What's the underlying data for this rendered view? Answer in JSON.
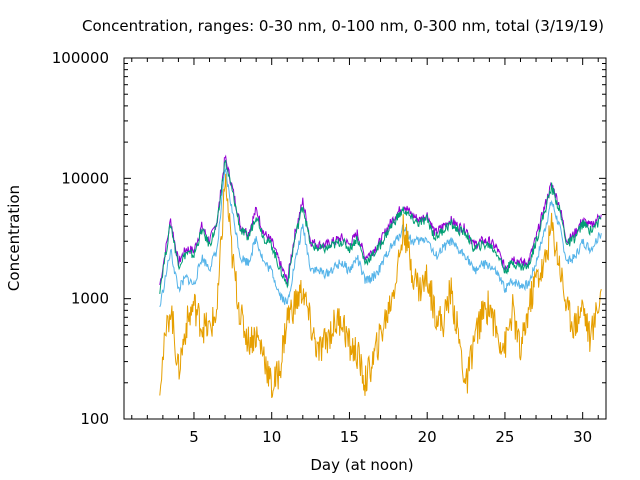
{
  "chart_data": {
    "type": "line",
    "title": "Concentration, ranges: 0-30 nm, 0-100 nm, 0-300 nm, total (3/19/19)",
    "xlabel": "Day (at noon)",
    "ylabel": "Concentration",
    "xlim": [
      0.5,
      31.5
    ],
    "ylim": [
      100,
      100000
    ],
    "yscale": "log",
    "xticks": [
      5,
      10,
      15,
      20,
      25,
      30
    ],
    "yticks": [
      100,
      1000,
      10000,
      100000
    ],
    "ytick_labels": [
      "100",
      "1000",
      "10000",
      "100000"
    ],
    "grid": false,
    "legend": "none",
    "series": [
      {
        "color": "#9400d3",
        "x": [
          2.8,
          3.5,
          4.0,
          4.5,
          5.0,
          5.5,
          6.0,
          6.5,
          7.0,
          7.5,
          8.0,
          8.5,
          9.0,
          9.5,
          10.0,
          10.5,
          11.0,
          11.5,
          12.0,
          12.5,
          13.0,
          13.5,
          14.0,
          14.5,
          15.0,
          15.5,
          16.0,
          16.5,
          17.0,
          17.5,
          18.0,
          18.5,
          19.0,
          19.5,
          20.0,
          20.5,
          21.0,
          21.5,
          22.0,
          22.5,
          23.0,
          23.5,
          24.0,
          24.5,
          25.0,
          25.5,
          26.0,
          26.5,
          27.0,
          27.5,
          28.0,
          28.5,
          29.0,
          29.5,
          30.0,
          30.5,
          31.2
        ],
        "y": [
          1300,
          4500,
          2000,
          2600,
          2500,
          4000,
          3000,
          4500,
          15000,
          8000,
          4000,
          3500,
          5500,
          3500,
          3000,
          2000,
          1400,
          3500,
          6500,
          3000,
          2800,
          2800,
          3000,
          3200,
          2800,
          3500,
          2200,
          2500,
          3000,
          4000,
          5000,
          6000,
          5000,
          4500,
          5000,
          3500,
          4000,
          4500,
          4000,
          3800,
          2800,
          3000,
          3000,
          2600,
          1800,
          2200,
          2000,
          2000,
          3200,
          5500,
          9000,
          6000,
          3000,
          3500,
          4500,
          4000,
          5000
        ]
      },
      {
        "color": "#009e73",
        "x": [
          2.8,
          3.5,
          4.0,
          4.5,
          5.0,
          5.5,
          6.0,
          6.5,
          7.0,
          7.5,
          8.0,
          8.5,
          9.0,
          9.5,
          10.0,
          10.5,
          11.0,
          11.5,
          12.0,
          12.5,
          13.0,
          13.5,
          14.0,
          14.5,
          15.0,
          15.5,
          16.0,
          16.5,
          17.0,
          17.5,
          18.0,
          18.5,
          19.0,
          19.5,
          20.0,
          20.5,
          21.0,
          21.5,
          22.0,
          22.5,
          23.0,
          23.5,
          24.0,
          24.5,
          25.0,
          25.5,
          26.0,
          26.5,
          27.0,
          27.5,
          28.0,
          28.5,
          29.0,
          29.5,
          30.0,
          30.5,
          31.2
        ],
        "y": [
          1200,
          4200,
          1900,
          2400,
          2300,
          3700,
          2800,
          4200,
          14000,
          7500,
          3700,
          3200,
          5000,
          3200,
          2800,
          1800,
          1300,
          3200,
          6000,
          2800,
          2600,
          2600,
          2800,
          3000,
          2600,
          3200,
          2000,
          2300,
          2800,
          3700,
          4600,
          5500,
          4600,
          4200,
          4600,
          3200,
          3700,
          4200,
          3700,
          3500,
          2600,
          2800,
          2800,
          2400,
          1700,
          2000,
          1850,
          1850,
          3000,
          5000,
          8500,
          5500,
          2800,
          3200,
          4200,
          3700,
          4600
        ]
      },
      {
        "color": "#56b4e9",
        "x": [
          2.8,
          3.5,
          4.0,
          4.5,
          5.0,
          5.5,
          6.0,
          6.5,
          7.0,
          7.5,
          8.0,
          8.5,
          9.0,
          9.5,
          10.0,
          10.5,
          11.0,
          11.5,
          12.0,
          12.5,
          13.0,
          13.5,
          14.0,
          14.5,
          15.0,
          15.5,
          16.0,
          16.5,
          17.0,
          17.5,
          18.0,
          18.5,
          19.0,
          19.5,
          20.0,
          20.5,
          21.0,
          21.5,
          22.0,
          22.5,
          23.0,
          23.5,
          24.0,
          24.5,
          25.0,
          25.5,
          26.0,
          26.5,
          27.0,
          27.5,
          28.0,
          28.5,
          29.0,
          29.5,
          30.0,
          30.5,
          31.2
        ],
        "y": [
          850,
          2500,
          1200,
          1500,
          1300,
          2200,
          1800,
          2600,
          12000,
          5000,
          2200,
          2000,
          3200,
          2000,
          1700,
          1100,
          900,
          2000,
          4000,
          1800,
          1700,
          1600,
          1800,
          2000,
          1700,
          2200,
          1400,
          1500,
          1800,
          2500,
          3000,
          4000,
          3000,
          3000,
          3200,
          2200,
          2600,
          3000,
          2500,
          2300,
          1700,
          1900,
          1900,
          1600,
          1200,
          1400,
          1300,
          1300,
          2000,
          3500,
          6500,
          4000,
          2000,
          2200,
          3000,
          2600,
          3500
        ]
      },
      {
        "color": "#e69f00",
        "x": [
          2.8,
          3.5,
          4.0,
          4.5,
          5.0,
          5.5,
          6.0,
          6.5,
          7.0,
          7.5,
          8.0,
          8.5,
          9.0,
          9.5,
          10.0,
          10.5,
          11.0,
          11.5,
          12.0,
          12.5,
          13.0,
          13.5,
          14.0,
          14.5,
          15.0,
          15.5,
          16.0,
          16.5,
          17.0,
          17.5,
          18.0,
          18.5,
          19.0,
          19.5,
          20.0,
          20.5,
          21.0,
          21.5,
          22.0,
          22.5,
          23.0,
          23.5,
          24.0,
          24.5,
          25.0,
          25.5,
          26.0,
          26.5,
          27.0,
          27.5,
          28.0,
          28.5,
          29.0,
          29.5,
          30.0,
          30.5,
          31.2
        ],
        "y": [
          210,
          900,
          250,
          600,
          900,
          600,
          550,
          800,
          10000,
          2000,
          700,
          450,
          500,
          350,
          180,
          250,
          700,
          900,
          1200,
          600,
          350,
          450,
          600,
          700,
          400,
          350,
          200,
          300,
          500,
          800,
          1500,
          4000,
          1800,
          1200,
          1500,
          800,
          600,
          1200,
          500,
          180,
          450,
          700,
          900,
          500,
          400,
          800,
          350,
          800,
          1500,
          1800,
          4000,
          2000,
          800,
          600,
          900,
          450,
          1200
        ]
      }
    ]
  }
}
